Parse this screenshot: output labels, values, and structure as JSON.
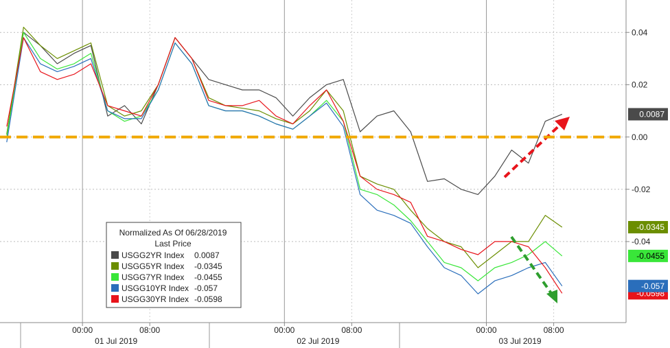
{
  "chart_data": {
    "type": "line",
    "legend_title": "Normalized As Of 06/28/2019",
    "legend_subtitle": "Last Price",
    "x": [
      "2019-06-30 15:00",
      "2019-06-30 17:00",
      "2019-06-30 19:00",
      "2019-06-30 21:00",
      "2019-06-30 23:00",
      "2019-07-01 01:00",
      "2019-07-01 03:00",
      "2019-07-01 05:00",
      "2019-07-01 07:00",
      "2019-07-01 09:00",
      "2019-07-01 11:00",
      "2019-07-01 13:00",
      "2019-07-01 15:00",
      "2019-07-01 17:00",
      "2019-07-01 19:00",
      "2019-07-01 21:00",
      "2019-07-01 23:00",
      "2019-07-02 01:00",
      "2019-07-02 03:00",
      "2019-07-02 05:00",
      "2019-07-02 07:00",
      "2019-07-02 09:00",
      "2019-07-02 11:00",
      "2019-07-02 13:00",
      "2019-07-02 15:00",
      "2019-07-02 17:00",
      "2019-07-02 19:00",
      "2019-07-02 21:00",
      "2019-07-02 23:00",
      "2019-07-03 01:00",
      "2019-07-03 03:00",
      "2019-07-03 05:00",
      "2019-07-03 07:00",
      "2019-07-03 09:00"
    ],
    "series": [
      {
        "name": "USGG2YR Index",
        "color": "#4a4a4a",
        "values": [
          0.001,
          0.04,
          0.035,
          0.028,
          0.032,
          0.035,
          0.008,
          0.012,
          0.005,
          0.02,
          0.038,
          0.03,
          0.022,
          0.02,
          0.018,
          0.018,
          0.015,
          0.008,
          0.015,
          0.02,
          0.022,
          0.002,
          0.008,
          0.01,
          0.002,
          -0.017,
          -0.016,
          -0.02,
          -0.022,
          -0.015,
          -0.005,
          -0.01,
          0.006,
          0.0087
        ]
      },
      {
        "name": "USGG5YR Index",
        "color": "#6b8e00",
        "values": [
          0.001,
          0.042,
          0.035,
          0.03,
          0.033,
          0.036,
          0.012,
          0.008,
          0.01,
          0.02,
          0.038,
          0.03,
          0.015,
          0.012,
          0.011,
          0.01,
          0.007,
          0.005,
          0.01,
          0.018,
          0.01,
          -0.015,
          -0.018,
          -0.02,
          -0.028,
          -0.035,
          -0.04,
          -0.042,
          -0.05,
          -0.045,
          -0.04,
          -0.04,
          -0.03,
          -0.0345
        ]
      },
      {
        "name": "USGG7YR Index",
        "color": "#39e639",
        "values": [
          0.0,
          0.04,
          0.03,
          0.026,
          0.028,
          0.032,
          0.01,
          0.006,
          0.008,
          0.018,
          0.036,
          0.028,
          0.012,
          0.01,
          0.01,
          0.008,
          0.005,
          0.003,
          0.008,
          0.014,
          0.006,
          -0.02,
          -0.022,
          -0.026,
          -0.032,
          -0.04,
          -0.048,
          -0.05,
          -0.055,
          -0.05,
          -0.048,
          -0.045,
          -0.04,
          -0.0455
        ]
      },
      {
        "name": "USGG10YR Index",
        "color": "#2a6ebb",
        "values": [
          -0.002,
          0.038,
          0.028,
          0.025,
          0.027,
          0.03,
          0.01,
          0.007,
          0.007,
          0.018,
          0.036,
          0.028,
          0.012,
          0.01,
          0.01,
          0.008,
          0.005,
          0.003,
          0.008,
          0.013,
          0.004,
          -0.022,
          -0.028,
          -0.03,
          -0.033,
          -0.042,
          -0.05,
          -0.053,
          -0.06,
          -0.055,
          -0.053,
          -0.05,
          -0.048,
          -0.057
        ]
      },
      {
        "name": "USGG30YR Index",
        "color": "#e8141b",
        "values": [
          0.004,
          0.038,
          0.025,
          0.022,
          0.024,
          0.028,
          0.012,
          0.01,
          0.008,
          0.02,
          0.038,
          0.03,
          0.014,
          0.012,
          0.012,
          0.014,
          0.008,
          0.005,
          0.012,
          0.018,
          0.006,
          -0.015,
          -0.02,
          -0.022,
          -0.025,
          -0.038,
          -0.04,
          -0.043,
          -0.045,
          -0.04,
          -0.04,
          -0.042,
          -0.05,
          -0.0598
        ]
      }
    ],
    "xlim": [
      "2019-06-30 14:12",
      "2019-07-03 16:36"
    ],
    "xticks": [
      {
        "value": "2019-07-01 00:00",
        "label": "00:00"
      },
      {
        "value": "2019-07-01 08:00",
        "label": "08:00"
      },
      {
        "value": "2019-07-02 00:00",
        "label": "00:00"
      },
      {
        "value": "2019-07-02 08:00",
        "label": "08:00"
      },
      {
        "value": "2019-07-03 00:00",
        "label": "00:00"
      },
      {
        "value": "2019-07-03 08:00",
        "label": "08:00"
      }
    ],
    "dates": [
      "01 Jul 2019",
      "02 Jul 2019",
      "03 Jul 2019"
    ],
    "ylim": [
      -0.071,
      0.0524
    ],
    "yticks": [
      0.04,
      0.02,
      {
        "value": 0,
        "label": "0.00"
      },
      -0.02,
      -0.04
    ],
    "grid": true,
    "hline": {
      "value": 0,
      "color": "#f0a800"
    }
  }
}
